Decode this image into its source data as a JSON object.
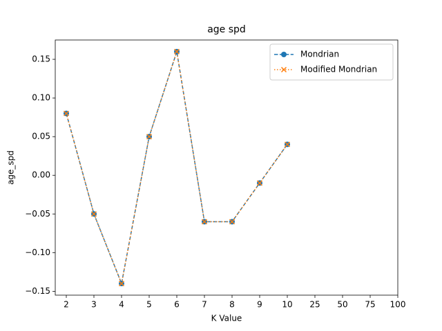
{
  "chart_data": {
    "type": "line",
    "title": "age spd",
    "x_label": "K Value",
    "y_label": "age_spd",
    "categories": [
      "2",
      "3",
      "4",
      "5",
      "6",
      "7",
      "8",
      "9",
      "10",
      "25",
      "50",
      "75",
      "100"
    ],
    "series": [
      {
        "name": "Mondrian",
        "color": "#1f77b4",
        "linestyle": "dashed",
        "marker": "circle",
        "values": [
          0.08,
          -0.05,
          -0.14,
          0.05,
          0.16,
          -0.06,
          -0.06,
          -0.01,
          0.04,
          null,
          null,
          null,
          null
        ]
      },
      {
        "name": "Modified Mondrian",
        "color": "#ff7f0e",
        "linestyle": "dotted",
        "marker": "x",
        "values": [
          0.08,
          -0.05,
          -0.14,
          0.05,
          0.16,
          -0.06,
          -0.06,
          -0.01,
          0.04,
          null,
          null,
          null,
          null
        ]
      }
    ],
    "ylim": [
      -0.155,
      0.175
    ],
    "yticks": [
      {
        "value": -0.15,
        "label": "−0.15"
      },
      {
        "value": -0.1,
        "label": "−0.10"
      },
      {
        "value": -0.05,
        "label": "−0.05"
      },
      {
        "value": 0,
        "label": "0.00"
      },
      0.05,
      {
        "value": 0.1,
        "label": "0.10"
      },
      0.15
    ],
    "legend": "upper right",
    "grid": false
  }
}
